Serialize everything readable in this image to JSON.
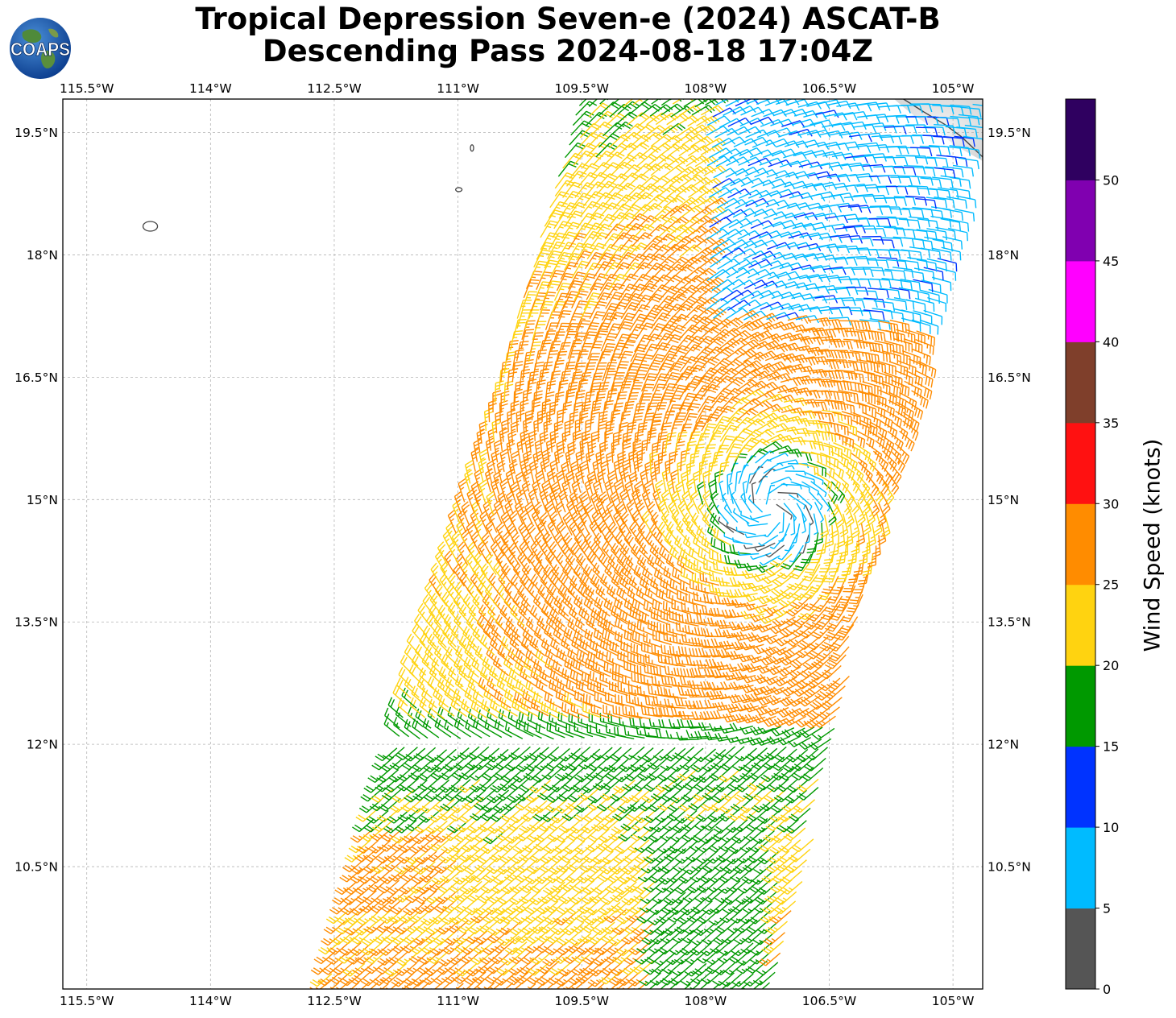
{
  "title": {
    "line1": "Tropical Depression Seven-e (2024) ASCAT-B",
    "line2": "Descending Pass 2024-08-18 17:04Z"
  },
  "logo": {
    "text": "COAPS",
    "icon": "earth-globe-icon"
  },
  "map": {
    "lon_range": [
      -115.79,
      -104.64
    ],
    "lat_range": [
      9.0,
      19.91
    ],
    "lon_ticks": [
      {
        "value": -115.5,
        "label": "115.5°W"
      },
      {
        "value": -114.0,
        "label": "114°W"
      },
      {
        "value": -112.5,
        "label": "112.5°W"
      },
      {
        "value": -111.0,
        "label": "111°W"
      },
      {
        "value": -109.5,
        "label": "109.5°W"
      },
      {
        "value": -108.0,
        "label": "108°W"
      },
      {
        "value": -106.5,
        "label": "106.5°W"
      },
      {
        "value": -105.0,
        "label": "105°W"
      }
    ],
    "lat_ticks": [
      {
        "value": 19.5,
        "label": "19.5°N"
      },
      {
        "value": 18.0,
        "label": "18°N"
      },
      {
        "value": 16.5,
        "label": "16.5°N"
      },
      {
        "value": 15.0,
        "label": "15°N"
      },
      {
        "value": 13.5,
        "label": "13.5°N"
      },
      {
        "value": 12.0,
        "label": "12°N"
      },
      {
        "value": 10.5,
        "label": "10.5°N"
      }
    ],
    "grid": true,
    "swath": {
      "center_lat": 14.9,
      "center_lon": -107.2,
      "top_lat": 19.9,
      "top_west_lon": -109.5,
      "top_east_lon": -104.7,
      "bottom_lat": 9.0,
      "bottom_west_lon": -112.6,
      "bottom_east_lon": -107.1,
      "barb_spacing_deg": 0.125
    },
    "islands": [
      {
        "name": "Clarion",
        "lon": -114.73,
        "lat": 18.35
      },
      {
        "name": "Socorro",
        "lon": -110.99,
        "lat": 18.8
      },
      {
        "name": "San Benedicto",
        "lon": -110.83,
        "lat": 19.31
      }
    ],
    "coast": {
      "lon": [
        -105.6,
        -105.35,
        -105.1,
        -104.9,
        -104.64
      ],
      "lat": [
        19.91,
        19.75,
        19.6,
        19.45,
        19.2
      ]
    }
  },
  "colorbar": {
    "label": "Wind Speed (knots)",
    "ticks": [
      "0",
      "5",
      "10",
      "15",
      "20",
      "25",
      "30",
      "35",
      "40",
      "45",
      "50"
    ],
    "colors": [
      "#555555",
      "#00bbff",
      "#0033ff",
      "#009900",
      "#ffd310",
      "#ff8c00",
      "#ff1111",
      "#7f3f2b",
      "#ff00ff",
      "#8000b0",
      "#2f0060"
    ]
  }
}
